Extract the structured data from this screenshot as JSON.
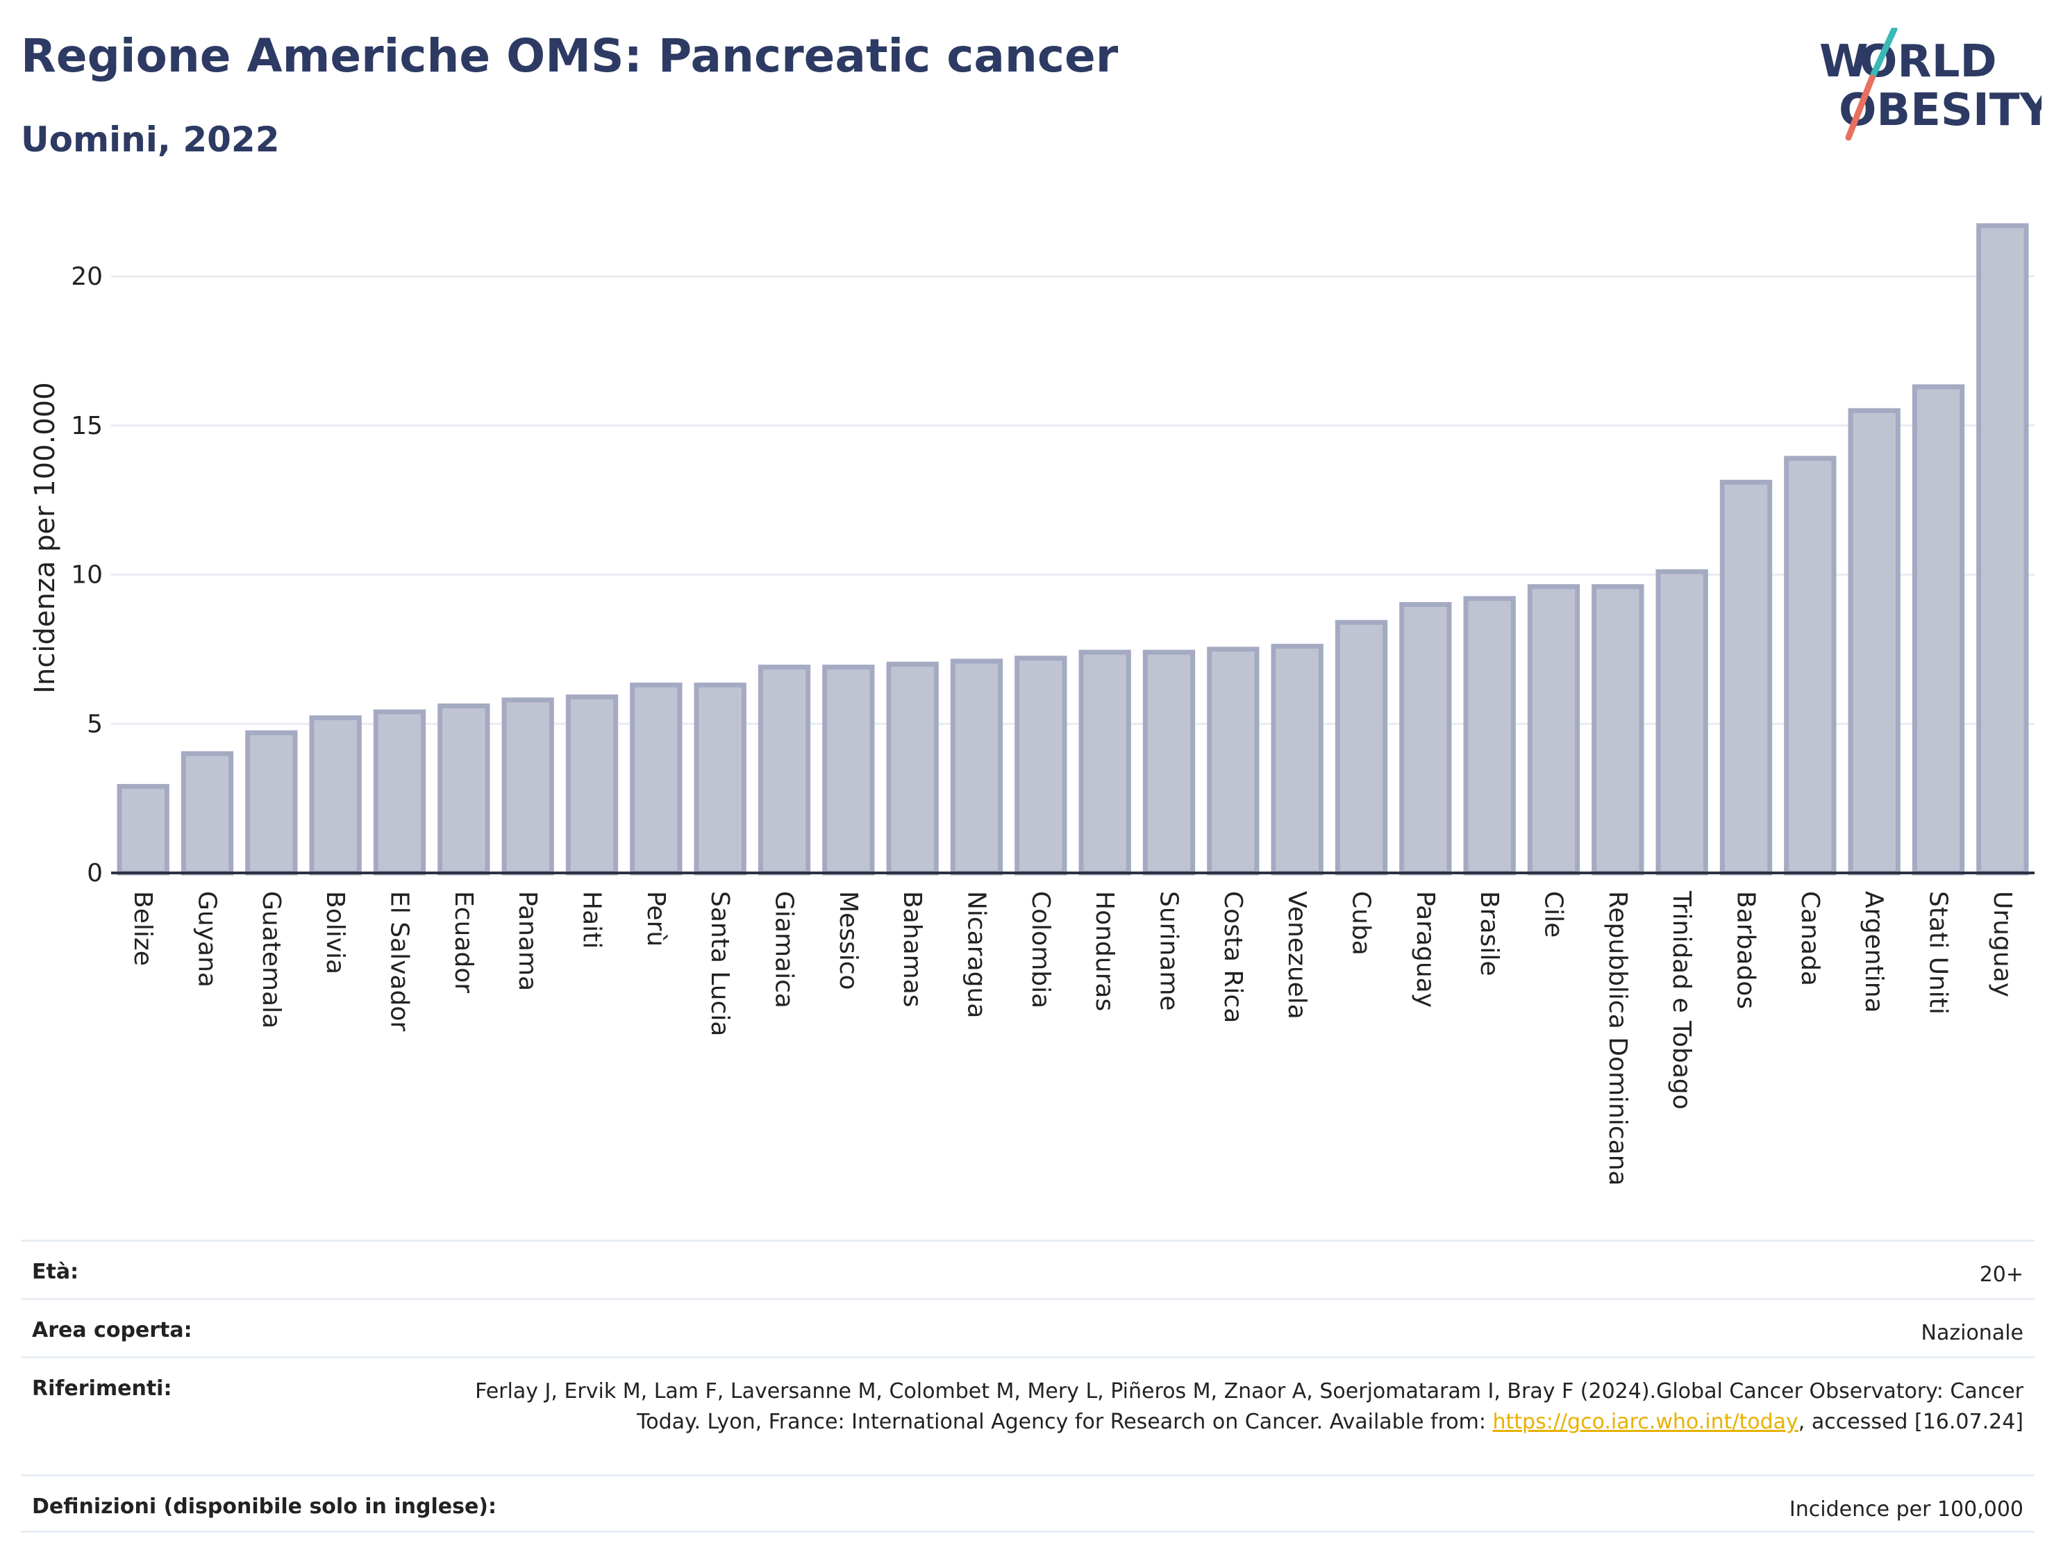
{
  "header": {
    "title": "Regione Americhe OMS: Pancreatic cancer",
    "subtitle": "Uomini, 2022",
    "logo_line1": "WORLD",
    "logo_line2": "OBESITY"
  },
  "colors": {
    "title": "#2d3a63",
    "bar_fill": "#c0c4d2",
    "bar_stroke": "#a4aac2",
    "grid": "#e8ecf2",
    "link": "#e8b100",
    "logo_teal": "#3bb8b8",
    "logo_coral": "#e8705f"
  },
  "chart_data": {
    "type": "bar",
    "title": "Regione Americhe OMS: Pancreatic cancer",
    "subtitle": "Uomini, 2022",
    "xlabel": "",
    "ylabel": "Incidenza per 100.000",
    "ylim": [
      0,
      22
    ],
    "yticks": [
      0,
      5,
      10,
      15,
      20
    ],
    "grid": true,
    "categories": [
      "Belize",
      "Guyana",
      "Guatemala",
      "Bolivia",
      "El Salvador",
      "Ecuador",
      "Panama",
      "Haiti",
      "Perù",
      "Santa Lucia",
      "Giamaica",
      "Messico",
      "Bahamas",
      "Nicaragua",
      "Colombia",
      "Honduras",
      "Suriname",
      "Costa Rica",
      "Venezuela",
      "Cuba",
      "Paraguay",
      "Brasile",
      "Cile",
      "Repubblica Dominicana",
      "Trinidad e Tobago",
      "Barbados",
      "Canada",
      "Argentina",
      "Stati Uniti",
      "Uruguay"
    ],
    "values": [
      2.9,
      4.0,
      4.7,
      5.2,
      5.4,
      5.6,
      5.8,
      5.9,
      6.3,
      6.3,
      6.9,
      6.9,
      7.0,
      7.1,
      7.2,
      7.4,
      7.4,
      7.5,
      7.6,
      8.4,
      9.0,
      9.2,
      9.6,
      9.6,
      10.1,
      13.1,
      13.9,
      15.5,
      16.3,
      21.7
    ]
  },
  "meta": {
    "age_label": "Età:",
    "age_value": "20+",
    "area_label": "Area coperta:",
    "area_value": "Nazionale",
    "ref_label": "Riferimenti:",
    "ref_text1": "Ferlay J, Ervik M, Lam F, Laversanne M, Colombet M, Mery L, Piñeros M, Znaor A, Soerjomataram I, Bray F (2024).Global Cancer Observatory: Cancer Today. Lyon, France: International Agency for Research on Cancer. Available from: ",
    "ref_link": "https://gco.iarc.who.int/today",
    "ref_text2": ", accessed [16.07.24]",
    "def_label": "Definizioni (disponibile solo in inglese):",
    "def_value": "Incidence per 100,000"
  }
}
